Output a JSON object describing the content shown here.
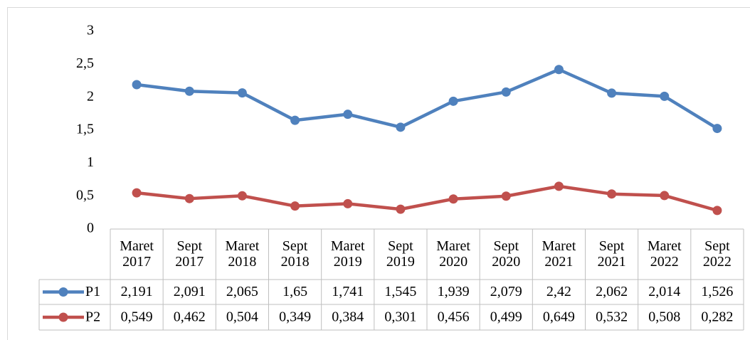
{
  "chart_data": {
    "type": "line",
    "categories": [
      "Maret 2017",
      "Sept 2017",
      "Maret 2018",
      "Sept 2018",
      "Maret 2019",
      "Sept 2019",
      "Maret 2020",
      "Sept 2020",
      "Maret 2021",
      "Sept 2021",
      "Maret 2022",
      "Sept 2022"
    ],
    "series": [
      {
        "name": "P1",
        "color": "#4f81bd",
        "values": [
          2.191,
          2.091,
          2.065,
          1.65,
          1.741,
          1.545,
          1.939,
          2.079,
          2.42,
          2.062,
          2.014,
          1.526
        ],
        "value_labels": [
          "2,191",
          "2,091",
          "2,065",
          "1,65",
          "1,741",
          "1,545",
          "1,939",
          "2,079",
          "2,42",
          "2,062",
          "2,014",
          "1,526"
        ]
      },
      {
        "name": "P2",
        "color": "#c0504d",
        "values": [
          0.549,
          0.462,
          0.504,
          0.349,
          0.384,
          0.301,
          0.456,
          0.499,
          0.649,
          0.532,
          0.508,
          0.282
        ],
        "value_labels": [
          "0,549",
          "0,462",
          "0,504",
          "0,349",
          "0,384",
          "0,301",
          "0,456",
          "0,499",
          "0,649",
          "0,532",
          "0,508",
          "0,282"
        ]
      }
    ],
    "ylim": [
      0,
      3
    ],
    "yticks": [
      0,
      {
        "value": 0.5,
        "label": "0,5"
      },
      1,
      {
        "value": 1.5,
        "label": "1,5"
      },
      2,
      {
        "value": 2.5,
        "label": "2,5"
      },
      3
    ],
    "grid": false,
    "legend": "table"
  }
}
